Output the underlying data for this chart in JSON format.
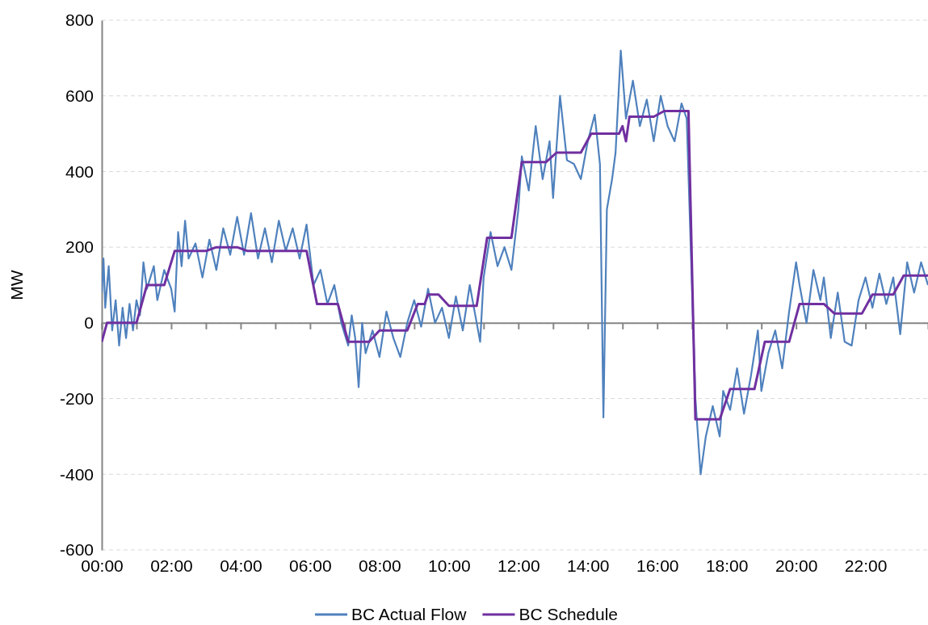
{
  "chart_data": {
    "type": "line",
    "ylabel": "MW",
    "xlim": [
      0,
      23.8
    ],
    "ylim": [
      -600,
      800
    ],
    "xticks": [
      {
        "value": 0,
        "label": "00:00"
      },
      {
        "value": 1,
        "label": null
      },
      {
        "value": 2,
        "label": "02:00"
      },
      {
        "value": 3,
        "label": null
      },
      {
        "value": 4,
        "label": "04:00"
      },
      {
        "value": 5,
        "label": null
      },
      {
        "value": 6,
        "label": "06:00"
      },
      {
        "value": 7,
        "label": null
      },
      {
        "value": 8,
        "label": "08:00"
      },
      {
        "value": 9,
        "label": null
      },
      {
        "value": 10,
        "label": "10:00"
      },
      {
        "value": 11,
        "label": null
      },
      {
        "value": 12,
        "label": "12:00"
      },
      {
        "value": 13,
        "label": null
      },
      {
        "value": 14,
        "label": "14:00"
      },
      {
        "value": 15,
        "label": null
      },
      {
        "value": 16,
        "label": "16:00"
      },
      {
        "value": 17,
        "label": null
      },
      {
        "value": 18,
        "label": "18:00"
      },
      {
        "value": 19,
        "label": null
      },
      {
        "value": 20,
        "label": "20:00"
      },
      {
        "value": 21,
        "label": null
      },
      {
        "value": 22,
        "label": "22:00"
      },
      {
        "value": 23,
        "label": null
      }
    ],
    "yticks": [
      -600,
      -400,
      -200,
      0,
      200,
      400,
      600,
      800
    ],
    "grid": "y",
    "legend": "bottom",
    "marker": "none",
    "line_style": "solid",
    "series": [
      {
        "name": "BC Actual Flow",
        "color": "#4f81bd",
        "x": [
          0,
          0.05,
          0.1,
          0.2,
          0.3,
          0.4,
          0.5,
          0.6,
          0.7,
          0.8,
          0.9,
          1.0,
          1.1,
          1.2,
          1.3,
          1.5,
          1.6,
          1.8,
          2.0,
          2.1,
          2.2,
          2.3,
          2.4,
          2.5,
          2.7,
          2.9,
          3.1,
          3.3,
          3.5,
          3.7,
          3.9,
          4.1,
          4.3,
          4.5,
          4.7,
          4.9,
          5.1,
          5.3,
          5.5,
          5.7,
          5.9,
          6.0,
          6.1,
          6.3,
          6.5,
          6.7,
          6.9,
          7.1,
          7.2,
          7.3,
          7.4,
          7.5,
          7.6,
          7.8,
          8.0,
          8.2,
          8.4,
          8.6,
          8.8,
          9.0,
          9.2,
          9.4,
          9.6,
          9.8,
          10.0,
          10.2,
          10.4,
          10.6,
          10.8,
          10.9,
          11.0,
          11.2,
          11.4,
          11.6,
          11.8,
          12.0,
          12.1,
          12.3,
          12.5,
          12.7,
          12.9,
          13.0,
          13.2,
          13.4,
          13.6,
          13.8,
          14.0,
          14.2,
          14.35,
          14.45,
          14.55,
          14.7,
          14.8,
          14.95,
          15.1,
          15.3,
          15.5,
          15.7,
          15.9,
          16.1,
          16.3,
          16.5,
          16.7,
          16.85,
          17.0,
          17.1,
          17.25,
          17.4,
          17.6,
          17.8,
          17.9,
          18.1,
          18.3,
          18.5,
          18.7,
          18.9,
          19.0,
          19.2,
          19.4,
          19.6,
          19.8,
          20.0,
          20.1,
          20.3,
          20.5,
          20.7,
          20.8,
          21.0,
          21.2,
          21.4,
          21.6,
          21.8,
          22.0,
          22.2,
          22.4,
          22.6,
          22.8,
          23.0,
          23.2,
          23.4,
          23.6,
          23.8
        ],
        "values": [
          80,
          170,
          40,
          150,
          -20,
          60,
          -60,
          40,
          -40,
          50,
          -20,
          60,
          20,
          160,
          90,
          150,
          60,
          140,
          90,
          30,
          240,
          150,
          270,
          170,
          210,
          120,
          220,
          140,
          250,
          180,
          280,
          180,
          290,
          170,
          250,
          160,
          270,
          190,
          250,
          170,
          260,
          180,
          100,
          140,
          50,
          100,
          0,
          -60,
          20,
          -40,
          -170,
          0,
          -80,
          -20,
          -90,
          30,
          -40,
          -90,
          0,
          60,
          -10,
          90,
          0,
          40,
          -40,
          70,
          -20,
          100,
          0,
          -50,
          120,
          240,
          150,
          200,
          140,
          300,
          440,
          350,
          520,
          380,
          480,
          330,
          600,
          430,
          420,
          380,
          480,
          550,
          420,
          -250,
          300,
          380,
          450,
          720,
          540,
          640,
          520,
          590,
          480,
          600,
          520,
          480,
          580,
          540,
          100,
          -200,
          -400,
          -300,
          -220,
          -300,
          -180,
          -230,
          -120,
          -240,
          -140,
          -20,
          -180,
          -80,
          -20,
          -120,
          30,
          160,
          100,
          0,
          140,
          60,
          120,
          -40,
          80,
          -50,
          -60,
          60,
          120,
          40,
          130,
          50,
          120,
          -30,
          160,
          80,
          160,
          100
        ]
      },
      {
        "name": "BC Schedule",
        "color": "#7030a0",
        "x": [
          0,
          0.15,
          1.0,
          1.3,
          1.8,
          2.1,
          3.0,
          3.3,
          3.9,
          4.2,
          5.9,
          6.2,
          6.8,
          7.1,
          7.7,
          8.0,
          8.8,
          9.1,
          9.3,
          9.4,
          9.7,
          10.0,
          10.8,
          11.1,
          11.8,
          12.1,
          12.8,
          13.1,
          13.8,
          14.1,
          14.9,
          15.0,
          15.1,
          15.2,
          15.9,
          16.2,
          16.9,
          17.1,
          17.8,
          18.1,
          18.8,
          19.1,
          19.8,
          20.1,
          20.8,
          21.1,
          21.9,
          22.2,
          22.8,
          23.1,
          23.8
        ],
        "values": [
          -50,
          0,
          0,
          100,
          100,
          190,
          190,
          200,
          200,
          190,
          190,
          50,
          50,
          -50,
          -50,
          -20,
          -20,
          50,
          50,
          75,
          75,
          45,
          45,
          225,
          225,
          425,
          425,
          450,
          450,
          500,
          500,
          520,
          480,
          545,
          545,
          560,
          560,
          -255,
          -255,
          -175,
          -175,
          -50,
          -50,
          50,
          50,
          25,
          25,
          75,
          75,
          125,
          125
        ]
      }
    ]
  }
}
